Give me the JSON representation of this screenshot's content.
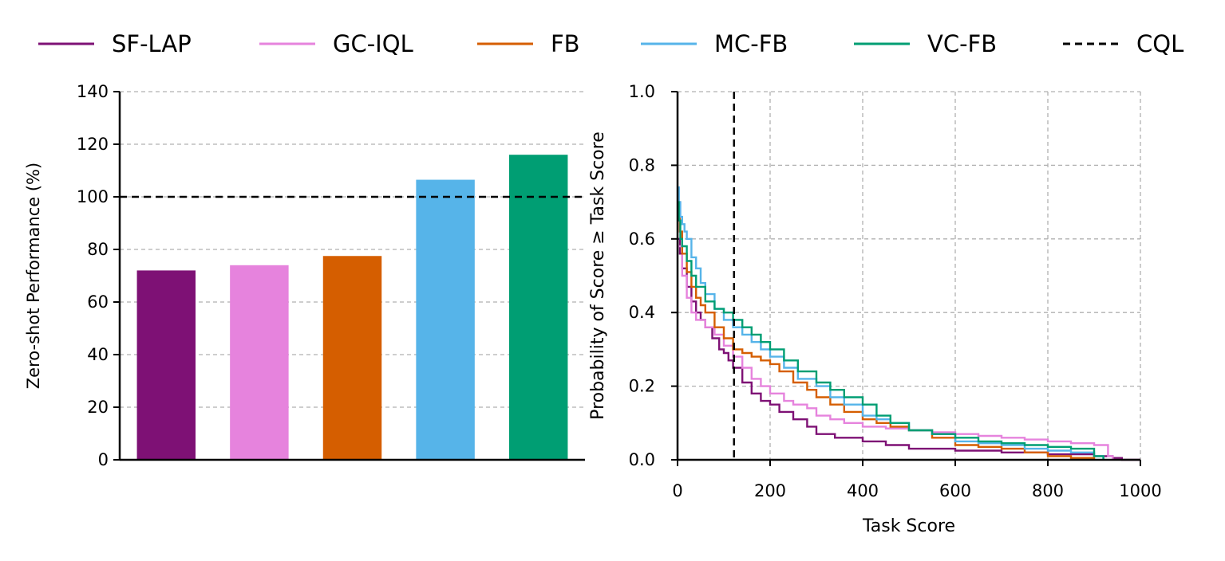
{
  "legend": {
    "placement": "top",
    "entries": [
      {
        "label": "SF-LAP",
        "color": "#7E1175",
        "dash": false
      },
      {
        "label": "GC-IQL",
        "color": "#E683DD",
        "dash": false
      },
      {
        "label": "FB",
        "color": "#D55E00",
        "dash": false
      },
      {
        "label": "MC-FB",
        "color": "#56B4E9",
        "dash": false
      },
      {
        "label": "VC-FB",
        "color": "#009E73",
        "dash": false
      },
      {
        "label": "CQL",
        "color": "#000000",
        "dash": true
      }
    ]
  },
  "chart_data": [
    {
      "type": "bar",
      "xlabel": "",
      "ylabel": "Zero-shot Performance (%)",
      "ylim": [
        0,
        140
      ],
      "yticks": [
        "0",
        "20",
        "40",
        "60",
        "80",
        "100",
        "120",
        "140"
      ],
      "grid": "y dashed",
      "categories": [
        "SF-LAP",
        "GC-IQL",
        "FB",
        "MC-FB",
        "VC-FB"
      ],
      "values": [
        72,
        74,
        77.5,
        106.5,
        116
      ],
      "colors": [
        "#7E1175",
        "#E683DD",
        "#D55E00",
        "#56B4E9",
        "#009E73"
      ],
      "reference_line": {
        "y": 100,
        "style": "dashed",
        "color": "#000000",
        "series": "CQL"
      }
    },
    {
      "type": "line",
      "xlabel": "Task Score",
      "ylabel": "Probability of Score ≥ Task Score",
      "xlim": [
        0,
        1000
      ],
      "ylim": [
        0,
        1
      ],
      "xticks": [
        "0",
        "200",
        "400",
        "600",
        "800",
        "1000"
      ],
      "yticks": [
        "0.0",
        "0.2",
        "0.4",
        "0.6",
        "0.8",
        "1.0"
      ],
      "grid": "both dashed",
      "reference_line": {
        "x": 122,
        "style": "dashed",
        "color": "#000000",
        "series": "CQL"
      },
      "series": [
        {
          "name": "SF-LAP",
          "color": "#7E1175",
          "x": [
            0,
            5,
            10,
            20,
            30,
            40,
            50,
            60,
            75,
            90,
            100,
            110,
            120,
            140,
            160,
            180,
            200,
            220,
            250,
            280,
            300,
            340,
            400,
            450,
            500,
            600,
            700,
            800,
            900,
            940,
            960,
            1000
          ],
          "y": [
            0.6,
            0.56,
            0.52,
            0.47,
            0.43,
            0.4,
            0.38,
            0.36,
            0.33,
            0.3,
            0.29,
            0.27,
            0.25,
            0.21,
            0.18,
            0.16,
            0.15,
            0.13,
            0.11,
            0.09,
            0.07,
            0.06,
            0.05,
            0.04,
            0.03,
            0.025,
            0.02,
            0.015,
            0.01,
            0.005,
            0.0,
            0.0
          ]
        },
        {
          "name": "GC-IQL",
          "color": "#E683DD",
          "x": [
            0,
            10,
            20,
            30,
            40,
            60,
            80,
            100,
            120,
            140,
            160,
            180,
            200,
            230,
            250,
            280,
            300,
            330,
            360,
            400,
            450,
            500,
            550,
            600,
            650,
            700,
            750,
            800,
            850,
            900,
            930,
            940
          ],
          "y": [
            0.58,
            0.5,
            0.44,
            0.4,
            0.38,
            0.36,
            0.34,
            0.31,
            0.28,
            0.25,
            0.22,
            0.2,
            0.18,
            0.16,
            0.15,
            0.14,
            0.12,
            0.11,
            0.1,
            0.09,
            0.085,
            0.08,
            0.075,
            0.07,
            0.065,
            0.06,
            0.055,
            0.05,
            0.045,
            0.04,
            0.01,
            0.0
          ]
        },
        {
          "name": "FB",
          "color": "#D55E00",
          "x": [
            0,
            5,
            10,
            20,
            30,
            40,
            50,
            60,
            80,
            100,
            120,
            140,
            160,
            180,
            200,
            220,
            250,
            280,
            300,
            330,
            360,
            400,
            430,
            460,
            500,
            550,
            600,
            650,
            700,
            750,
            800,
            850,
            900
          ],
          "y": [
            0.7,
            0.62,
            0.56,
            0.51,
            0.47,
            0.44,
            0.42,
            0.4,
            0.36,
            0.33,
            0.3,
            0.29,
            0.28,
            0.27,
            0.26,
            0.24,
            0.21,
            0.19,
            0.17,
            0.15,
            0.13,
            0.11,
            0.1,
            0.09,
            0.08,
            0.06,
            0.04,
            0.035,
            0.03,
            0.02,
            0.01,
            0.005,
            0.0
          ]
        },
        {
          "name": "MC-FB",
          "color": "#56B4E9",
          "x": [
            0,
            3,
            6,
            10,
            15,
            20,
            30,
            40,
            50,
            60,
            80,
            100,
            120,
            140,
            160,
            180,
            200,
            230,
            260,
            300,
            330,
            360,
            400,
            430,
            460,
            500,
            550,
            600,
            650,
            700,
            750,
            800,
            850,
            900,
            920
          ],
          "y": [
            0.74,
            0.7,
            0.66,
            0.64,
            0.62,
            0.6,
            0.55,
            0.52,
            0.48,
            0.45,
            0.41,
            0.38,
            0.36,
            0.34,
            0.32,
            0.3,
            0.28,
            0.25,
            0.22,
            0.2,
            0.17,
            0.15,
            0.12,
            0.11,
            0.1,
            0.08,
            0.07,
            0.05,
            0.045,
            0.04,
            0.03,
            0.025,
            0.02,
            0.01,
            0.0
          ]
        },
        {
          "name": "VC-FB",
          "color": "#009E73",
          "x": [
            0,
            3,
            6,
            10,
            20,
            30,
            40,
            60,
            80,
            100,
            120,
            140,
            160,
            180,
            200,
            230,
            260,
            300,
            330,
            360,
            400,
            430,
            460,
            500,
            550,
            600,
            650,
            700,
            750,
            800,
            850,
            900,
            920
          ],
          "y": [
            0.7,
            0.65,
            0.6,
            0.58,
            0.54,
            0.5,
            0.47,
            0.43,
            0.41,
            0.4,
            0.38,
            0.36,
            0.34,
            0.32,
            0.3,
            0.27,
            0.24,
            0.21,
            0.19,
            0.17,
            0.15,
            0.12,
            0.1,
            0.08,
            0.07,
            0.06,
            0.05,
            0.045,
            0.04,
            0.035,
            0.03,
            0.01,
            0.0
          ]
        }
      ]
    }
  ]
}
